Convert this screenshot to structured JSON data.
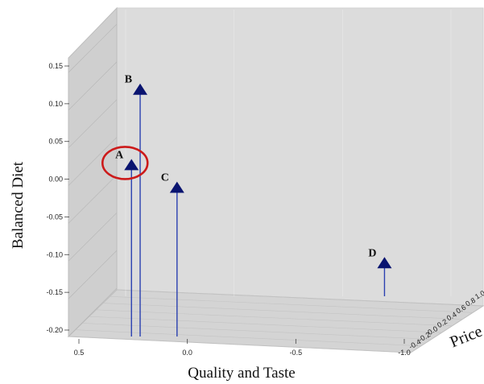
{
  "chart_data": {
    "type": "scatter",
    "title": "",
    "xlabel": "Quality and Taste",
    "ylabel": "Balanced Diet",
    "zlabel": "Price",
    "x_ticks": [
      "0.5",
      "0.0",
      "-0.5",
      "-1.0"
    ],
    "y_ticks": [
      "0.15",
      "0.10",
      "0.05",
      "0.00",
      "-0.05",
      "-0.10",
      "-0.15",
      "-0.20"
    ],
    "z_ticks": [
      "1.0",
      "0.8",
      "0.6",
      "0.4",
      "0.2",
      "0.0",
      "-0.2",
      "-0.4"
    ],
    "x_range": [
      0.5,
      -1.0
    ],
    "y_range": [
      -0.2,
      0.15
    ],
    "z_range": [
      -0.4,
      1.0
    ],
    "grid": true,
    "marker": "triangle",
    "marker_color": "#0a1470",
    "stem_color": "#2a40b0",
    "highlight_color": "#cc1a1a",
    "points": [
      {
        "label": "A",
        "x": 0.29,
        "y": 0.03,
        "z": 1.0,
        "highlighted": true
      },
      {
        "label": "B",
        "x": 0.25,
        "y": 0.13,
        "z": 1.0,
        "highlighted": false
      },
      {
        "label": "C",
        "x": 0.08,
        "y": 0.0,
        "z": 1.0,
        "highlighted": false
      },
      {
        "label": "D",
        "x": -0.88,
        "y": -0.1,
        "z": 0.85,
        "highlighted": false
      }
    ]
  }
}
